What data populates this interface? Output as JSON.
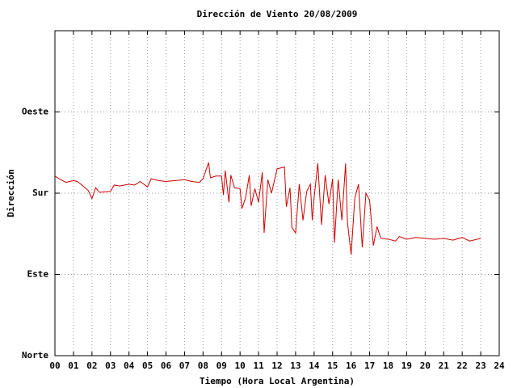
{
  "chart_data": {
    "type": "line",
    "title": "Dirección de Viento 20/08/2009",
    "x_label": "Tiempo (Hora Local Argentina)",
    "y_label": "Dirección",
    "color": "#d00000",
    "grid": true,
    "xlim": [
      0,
      24
    ],
    "xticks": [
      {
        "value": 0,
        "label": "00"
      },
      {
        "value": 1,
        "label": "01"
      },
      {
        "value": 2,
        "label": "02"
      },
      {
        "value": 3,
        "label": "03"
      },
      {
        "value": 4,
        "label": "04"
      },
      {
        "value": 5,
        "label": "05"
      },
      {
        "value": 6,
        "label": "06"
      },
      {
        "value": 7,
        "label": "07"
      },
      {
        "value": 8,
        "label": "08"
      },
      {
        "value": 9,
        "label": "09"
      },
      10,
      11,
      12,
      13,
      14,
      15,
      16,
      17,
      18,
      19,
      20,
      21,
      22,
      23,
      24
    ],
    "ylim": [
      0,
      360
    ],
    "yticks": [
      {
        "value": 0,
        "label": "Norte"
      },
      {
        "value": 90,
        "label": "Este"
      },
      {
        "value": 180,
        "label": "Sur"
      },
      {
        "value": 270,
        "label": "Oeste"
      }
    ],
    "x": [
      0.0,
      0.3,
      0.6,
      1.0,
      1.2,
      1.4,
      1.8,
      2.0,
      2.2,
      2.4,
      3.0,
      3.2,
      3.5,
      4.0,
      4.3,
      4.6,
      5.0,
      5.2,
      5.6,
      6.0,
      6.5,
      7.0,
      7.4,
      7.8,
      8.0,
      8.3,
      8.4,
      8.7,
      9.0,
      9.1,
      9.2,
      9.4,
      9.5,
      9.7,
      10.0,
      10.1,
      10.3,
      10.5,
      10.6,
      10.8,
      11.0,
      11.2,
      11.3,
      11.5,
      11.7,
      12.0,
      12.4,
      12.5,
      12.7,
      12.8,
      13.0,
      13.2,
      13.4,
      13.6,
      13.8,
      13.9,
      14.0,
      14.2,
      14.4,
      14.6,
      14.8,
      15.0,
      15.1,
      15.3,
      15.5,
      15.7,
      15.8,
      16.0,
      16.2,
      16.4,
      16.6,
      16.8,
      17.0,
      17.2,
      17.4,
      17.6,
      18.0,
      18.4,
      18.6,
      19.0,
      19.5,
      20.0,
      20.5,
      21.0,
      21.5,
      22.0,
      22.4,
      23.0
    ],
    "values": [
      199,
      195,
      192,
      194,
      193,
      190,
      183,
      174,
      186,
      181,
      182,
      189,
      188,
      190,
      189,
      193,
      187,
      196,
      194,
      193,
      194,
      195,
      193,
      192,
      196,
      214,
      197,
      199,
      199,
      178,
      205,
      170,
      200,
      186,
      185,
      163,
      175,
      200,
      166,
      185,
      170,
      203,
      136,
      195,
      180,
      207,
      209,
      165,
      186,
      142,
      136,
      190,
      150,
      182,
      190,
      150,
      175,
      213,
      145,
      200,
      168,
      196,
      125,
      195,
      150,
      213,
      148,
      112,
      175,
      190,
      120,
      180,
      172,
      122,
      143,
      130,
      129,
      127,
      132,
      129,
      131,
      130,
      129,
      130,
      128,
      131,
      127,
      130
    ]
  }
}
